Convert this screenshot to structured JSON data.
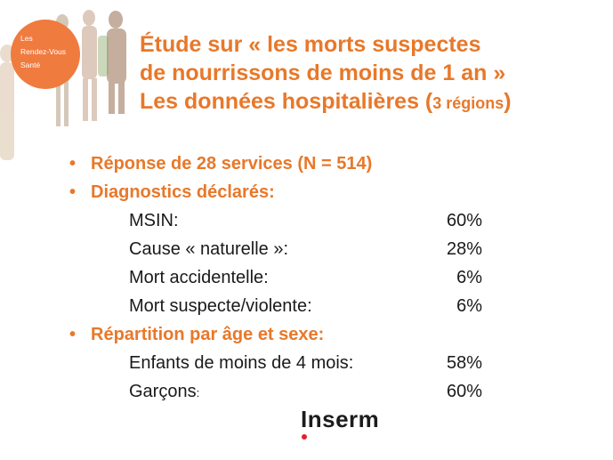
{
  "logo": {
    "lines": [
      "Les",
      "Rendez-Vous",
      "Santé"
    ],
    "circle_color": "#f07b3f"
  },
  "title": {
    "line1": "Étude sur « les morts suspectes",
    "line2": "de nourrissons de moins de 1 an »",
    "line3_main": "Les données hospitalières (",
    "line3_small": "3 régions",
    "line3_end": ")",
    "color": "#e8782a"
  },
  "sections": [
    {
      "bullet": "Réponse de 28 services (N = 514)",
      "rows": []
    },
    {
      "bullet": "Diagnostics déclarés:",
      "rows": [
        {
          "label": "MSIN:",
          "value": "60%"
        },
        {
          "label": "Cause « naturelle »:",
          "value": "28%"
        },
        {
          "label": "Mort accidentelle:",
          "value": "6%"
        },
        {
          "label": "Mort suspecte/violente:",
          "value": "6%"
        }
      ]
    },
    {
      "bullet": "Répartition par âge et sexe:",
      "rows": [
        {
          "label": "Enfants de moins de 4 mois:",
          "value": "58%"
        },
        {
          "label": "Garçons",
          "label_small": ":",
          "value": "60%"
        }
      ]
    }
  ],
  "footer": {
    "brand": "Inserm",
    "dot_color": "#e4202a"
  }
}
